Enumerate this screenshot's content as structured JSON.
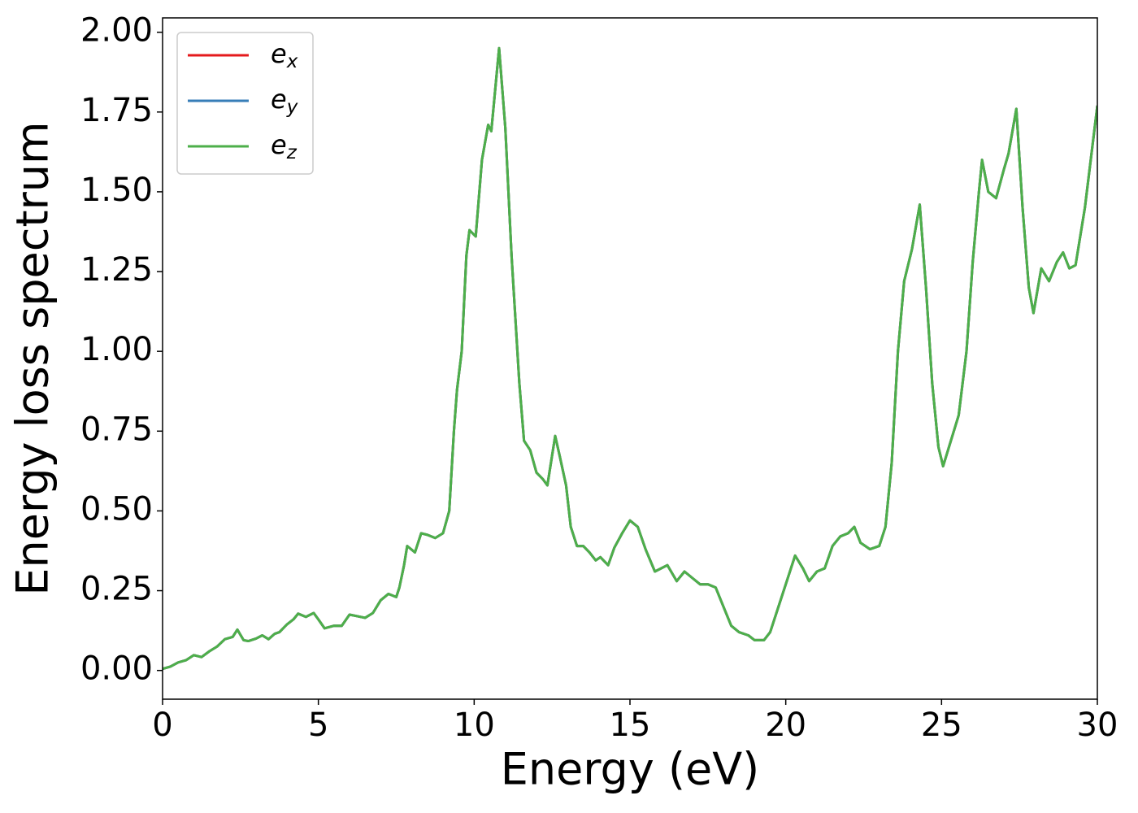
{
  "chart_data": {
    "type": "line",
    "xlabel": "Energy (eV)",
    "ylabel": "Energy loss spectrum",
    "x": [
      0,
      0.25,
      0.5,
      0.75,
      1.0,
      1.25,
      1.5,
      1.75,
      2.0,
      2.25,
      2.4,
      2.6,
      2.75,
      3.0,
      3.2,
      3.4,
      3.6,
      3.75,
      4.0,
      4.2,
      4.35,
      4.6,
      4.85,
      5.0,
      5.2,
      5.5,
      5.75,
      6.0,
      6.25,
      6.5,
      6.75,
      7.0,
      7.25,
      7.5,
      7.6,
      7.75,
      7.85,
      8.1,
      8.3,
      8.5,
      8.75,
      9.0,
      9.2,
      9.35,
      9.45,
      9.6,
      9.75,
      9.85,
      10.05,
      10.25,
      10.45,
      10.55,
      10.8,
      11.0,
      11.2,
      11.45,
      11.6,
      11.8,
      12.0,
      12.2,
      12.35,
      12.6,
      12.75,
      12.95,
      13.1,
      13.3,
      13.5,
      13.7,
      13.9,
      14.05,
      14.3,
      14.5,
      14.75,
      15.0,
      15.25,
      15.5,
      15.8,
      16.2,
      16.5,
      16.75,
      17.0,
      17.25,
      17.5,
      17.75,
      18.0,
      18.25,
      18.5,
      18.8,
      19.0,
      19.3,
      19.5,
      19.8,
      20.1,
      20.3,
      20.55,
      20.75,
      21.0,
      21.25,
      21.5,
      21.75,
      22.0,
      22.2,
      22.4,
      22.7,
      23.0,
      23.2,
      23.4,
      23.6,
      23.8,
      24.05,
      24.3,
      24.5,
      24.7,
      24.9,
      25.05,
      25.3,
      25.55,
      25.8,
      26.0,
      26.2,
      26.3,
      26.5,
      26.75,
      27.0,
      27.15,
      27.4,
      27.6,
      27.8,
      27.95,
      28.2,
      28.45,
      28.7,
      28.9,
      29.1,
      29.3,
      29.6,
      30.0
    ],
    "series": [
      {
        "name": "ex",
        "color": "#e41a1c",
        "values": [
          0.005,
          0.012,
          0.025,
          0.032,
          0.048,
          0.042,
          0.06,
          0.075,
          0.098,
          0.105,
          0.128,
          0.095,
          0.092,
          0.1,
          0.11,
          0.098,
          0.115,
          0.12,
          0.145,
          0.16,
          0.178,
          0.168,
          0.18,
          0.16,
          0.132,
          0.14,
          0.14,
          0.175,
          0.17,
          0.165,
          0.18,
          0.22,
          0.24,
          0.23,
          0.26,
          0.33,
          0.39,
          0.37,
          0.43,
          0.425,
          0.415,
          0.43,
          0.5,
          0.75,
          0.88,
          1.0,
          1.3,
          1.38,
          1.36,
          1.6,
          1.71,
          1.69,
          1.95,
          1.7,
          1.3,
          0.9,
          0.72,
          0.69,
          0.62,
          0.6,
          0.58,
          0.735,
          0.67,
          0.58,
          0.45,
          0.39,
          0.39,
          0.37,
          0.345,
          0.355,
          0.33,
          0.385,
          0.43,
          0.47,
          0.45,
          0.38,
          0.31,
          0.33,
          0.28,
          0.31,
          0.29,
          0.27,
          0.27,
          0.26,
          0.2,
          0.14,
          0.12,
          0.11,
          0.095,
          0.095,
          0.12,
          0.21,
          0.3,
          0.36,
          0.32,
          0.28,
          0.31,
          0.32,
          0.39,
          0.42,
          0.43,
          0.45,
          0.4,
          0.38,
          0.39,
          0.45,
          0.65,
          1.0,
          1.22,
          1.32,
          1.46,
          1.2,
          0.9,
          0.7,
          0.64,
          0.72,
          0.8,
          1.0,
          1.28,
          1.5,
          1.6,
          1.5,
          1.48,
          1.57,
          1.62,
          1.76,
          1.45,
          1.2,
          1.12,
          1.26,
          1.22,
          1.28,
          1.31,
          1.26,
          1.27,
          1.45,
          1.77
        ]
      },
      {
        "name": "ey",
        "color": "#377eb8",
        "values": [
          0.005,
          0.012,
          0.025,
          0.032,
          0.048,
          0.042,
          0.06,
          0.075,
          0.098,
          0.105,
          0.128,
          0.095,
          0.092,
          0.1,
          0.11,
          0.098,
          0.115,
          0.12,
          0.145,
          0.16,
          0.178,
          0.168,
          0.18,
          0.16,
          0.132,
          0.14,
          0.14,
          0.175,
          0.17,
          0.165,
          0.18,
          0.22,
          0.24,
          0.23,
          0.26,
          0.33,
          0.39,
          0.37,
          0.43,
          0.425,
          0.415,
          0.43,
          0.5,
          0.75,
          0.88,
          1.0,
          1.3,
          1.38,
          1.36,
          1.6,
          1.71,
          1.69,
          1.95,
          1.7,
          1.3,
          0.9,
          0.72,
          0.69,
          0.62,
          0.6,
          0.58,
          0.735,
          0.67,
          0.58,
          0.45,
          0.39,
          0.39,
          0.37,
          0.345,
          0.355,
          0.33,
          0.385,
          0.43,
          0.47,
          0.45,
          0.38,
          0.31,
          0.33,
          0.28,
          0.31,
          0.29,
          0.27,
          0.27,
          0.26,
          0.2,
          0.14,
          0.12,
          0.11,
          0.095,
          0.095,
          0.12,
          0.21,
          0.3,
          0.36,
          0.32,
          0.28,
          0.31,
          0.32,
          0.39,
          0.42,
          0.43,
          0.45,
          0.4,
          0.38,
          0.39,
          0.45,
          0.65,
          1.0,
          1.22,
          1.32,
          1.46,
          1.2,
          0.9,
          0.7,
          0.64,
          0.72,
          0.8,
          1.0,
          1.28,
          1.5,
          1.6,
          1.5,
          1.48,
          1.57,
          1.62,
          1.76,
          1.45,
          1.2,
          1.12,
          1.26,
          1.22,
          1.28,
          1.31,
          1.26,
          1.27,
          1.45,
          1.77
        ]
      },
      {
        "name": "ez",
        "color": "#4daf4a",
        "values": [
          0.005,
          0.012,
          0.025,
          0.032,
          0.048,
          0.042,
          0.06,
          0.075,
          0.098,
          0.105,
          0.128,
          0.095,
          0.092,
          0.1,
          0.11,
          0.098,
          0.115,
          0.12,
          0.145,
          0.16,
          0.178,
          0.168,
          0.18,
          0.16,
          0.132,
          0.14,
          0.14,
          0.175,
          0.17,
          0.165,
          0.18,
          0.22,
          0.24,
          0.23,
          0.26,
          0.33,
          0.39,
          0.37,
          0.43,
          0.425,
          0.415,
          0.43,
          0.5,
          0.75,
          0.88,
          1.0,
          1.3,
          1.38,
          1.36,
          1.6,
          1.71,
          1.69,
          1.95,
          1.7,
          1.3,
          0.9,
          0.72,
          0.69,
          0.62,
          0.6,
          0.58,
          0.735,
          0.67,
          0.58,
          0.45,
          0.39,
          0.39,
          0.37,
          0.345,
          0.355,
          0.33,
          0.385,
          0.43,
          0.47,
          0.45,
          0.38,
          0.31,
          0.33,
          0.28,
          0.31,
          0.29,
          0.27,
          0.27,
          0.26,
          0.2,
          0.14,
          0.12,
          0.11,
          0.095,
          0.095,
          0.12,
          0.21,
          0.3,
          0.36,
          0.32,
          0.28,
          0.31,
          0.32,
          0.39,
          0.42,
          0.43,
          0.45,
          0.4,
          0.38,
          0.39,
          0.45,
          0.65,
          1.0,
          1.22,
          1.32,
          1.46,
          1.2,
          0.9,
          0.7,
          0.64,
          0.72,
          0.8,
          1.0,
          1.28,
          1.5,
          1.6,
          1.5,
          1.48,
          1.57,
          1.62,
          1.76,
          1.45,
          1.2,
          1.12,
          1.26,
          1.22,
          1.28,
          1.31,
          1.26,
          1.27,
          1.45,
          1.77
        ]
      }
    ],
    "xlim": [
      0,
      30
    ],
    "xticks": [
      0,
      5,
      10,
      15,
      20,
      25,
      30
    ],
    "ylim": [
      -0.09,
      2.045
    ],
    "yticks": [
      {
        "value": 0,
        "label": "0.00"
      },
      {
        "value": 0.25,
        "label": "0.25"
      },
      {
        "value": 0.5,
        "label": "0.50"
      },
      {
        "value": 0.75,
        "label": "0.75"
      },
      {
        "value": 1.0,
        "label": "1.00"
      },
      {
        "value": 1.25,
        "label": "1.25"
      },
      {
        "value": 1.5,
        "label": "1.50"
      },
      {
        "value": 1.75,
        "label": "1.75"
      },
      {
        "value": 2.0,
        "label": "2.00"
      }
    ],
    "legend": "upper-left",
    "grid": false
  }
}
